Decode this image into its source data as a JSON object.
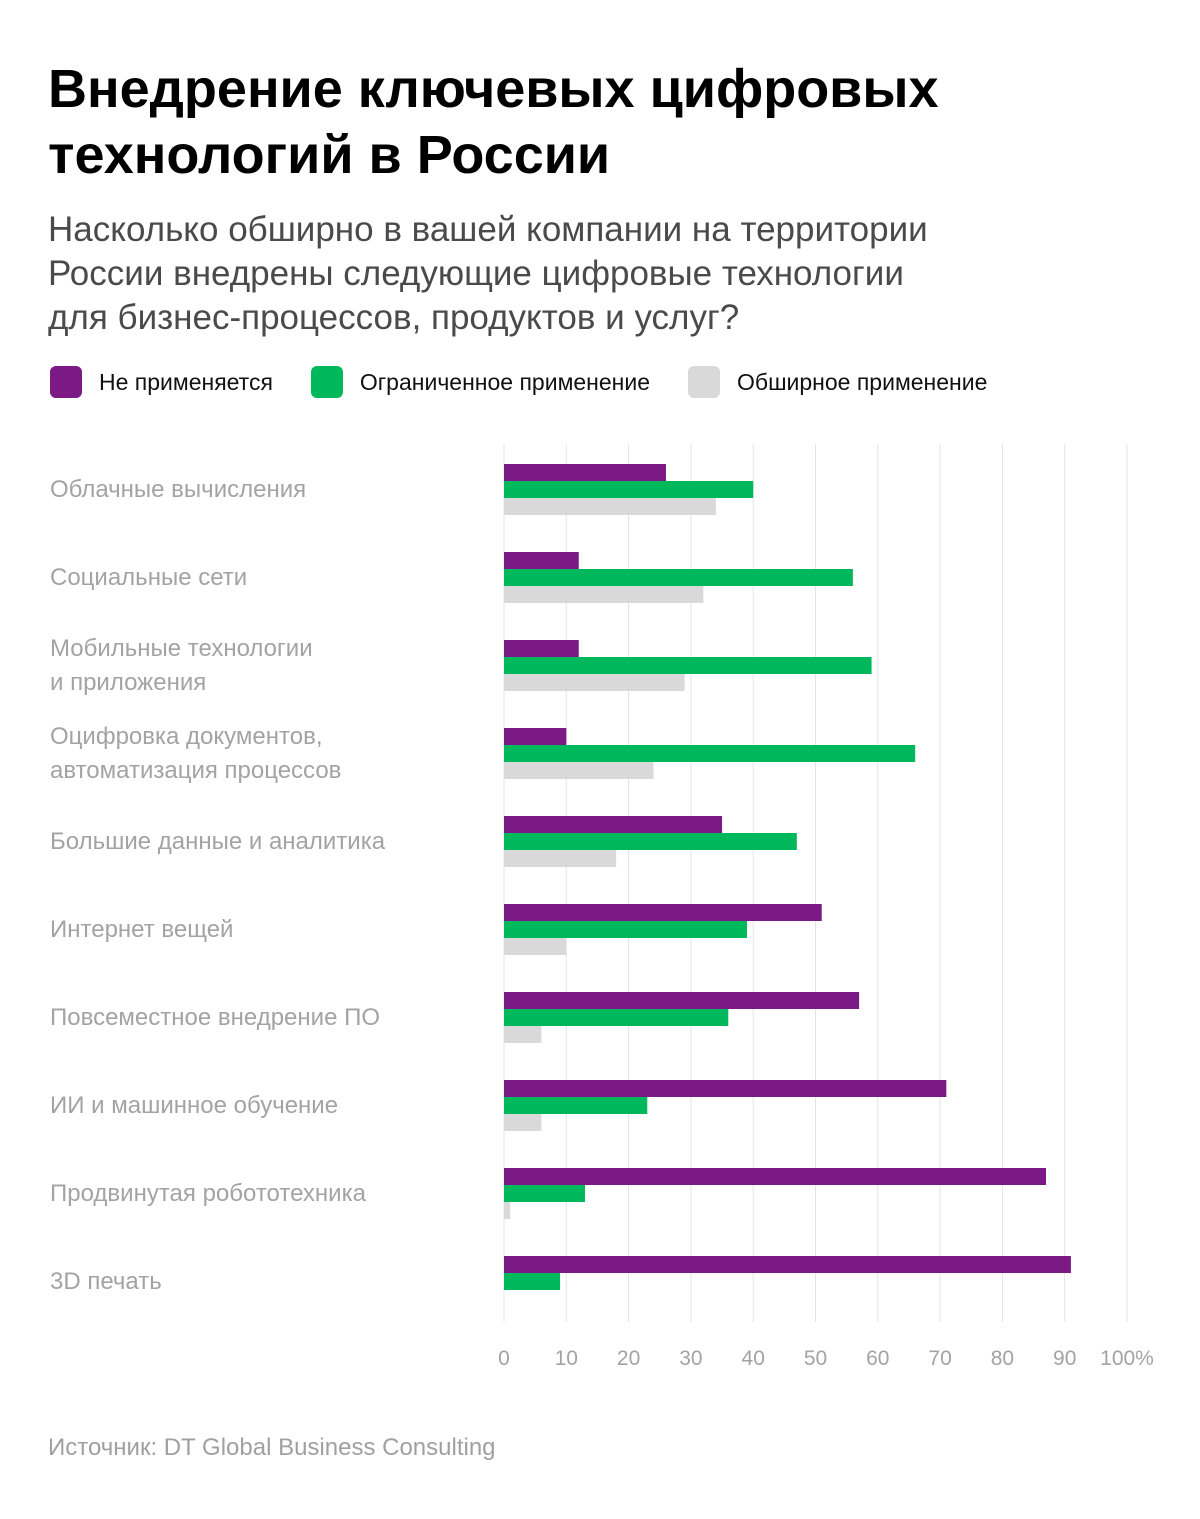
{
  "title_lines": [
    "Внедрение ключевых цифровых",
    "технологий в России"
  ],
  "subtitle_lines": [
    "Насколько обширно в вашей компании на территории",
    "России внедрены следующие цифровые технологии",
    "для бизнес-процессов, продуктов и услуг?"
  ],
  "legend": [
    {
      "label": "Не применяется",
      "color": "#7B1A85"
    },
    {
      "label": "Ограниченное применение",
      "color": "#00B85C"
    },
    {
      "label": "Обширное применение",
      "color": "#D9D9D9"
    }
  ],
  "source": "Источник: DT Global Business Consulting",
  "chart_data": {
    "type": "bar",
    "orientation": "horizontal",
    "categories": [
      [
        "Облачные вычисления"
      ],
      [
        "Социальные сети"
      ],
      [
        "Мобильные технологии",
        "и приложения"
      ],
      [
        "Оцифровка документов,",
        "автоматизация процессов"
      ],
      [
        "Большие данные и аналитика"
      ],
      [
        "Интернет вещей"
      ],
      [
        "Повсеместное внедрение ПО"
      ],
      [
        "ИИ и машинное обучение"
      ],
      [
        "Продвинутая робототехника"
      ],
      [
        "3D печать"
      ]
    ],
    "series": [
      {
        "name": "Не применяется",
        "color": "#7B1A85",
        "values": [
          26,
          12,
          12,
          10,
          35,
          51,
          57,
          71,
          87,
          91
        ]
      },
      {
        "name": "Ограниченное применение",
        "color": "#00B85C",
        "values": [
          40,
          56,
          59,
          66,
          47,
          39,
          36,
          23,
          13,
          9
        ]
      },
      {
        "name": "Обширное применение",
        "color": "#D9D9D9",
        "values": [
          34,
          32,
          29,
          24,
          18,
          10,
          6,
          6,
          1,
          0
        ]
      }
    ],
    "x_ticks": [
      "0",
      "10",
      "20",
      "30",
      "40",
      "50",
      "60",
      "70",
      "80",
      "90",
      "100%"
    ],
    "xlim": [
      0,
      100
    ],
    "grid": true,
    "legend_position": "top"
  }
}
